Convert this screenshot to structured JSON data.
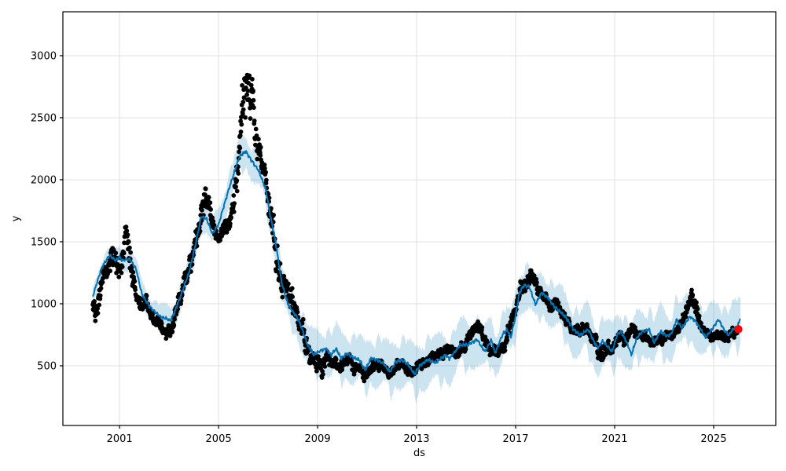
{
  "chart_data": {
    "type": "scatter+line+band",
    "title": "",
    "xlabel": "ds",
    "ylabel": "y",
    "x_ticks": [
      2001,
      2005,
      2009,
      2013,
      2017,
      2021,
      2025
    ],
    "y_ticks": [
      500,
      1000,
      1500,
      2000,
      2500,
      3000
    ],
    "x_range": [
      1998.71,
      2027.51
    ],
    "y_range": [
      19,
      3354
    ],
    "grid": true,
    "grid_color": "#e0e0e0",
    "spine_color": "#000000",
    "legend": "none",
    "series": [
      {
        "name": "uncertainty-band",
        "style": "band",
        "color": "#0072B2",
        "alpha": 0.2,
        "x_start": 1999.92,
        "x_end": 2026.08,
        "half_width_keypoints": [
          [
            1999.92,
            75
          ],
          [
            2001.0,
            95
          ],
          [
            2003.0,
            125
          ],
          [
            2005.0,
            145
          ],
          [
            2006.0,
            160
          ],
          [
            2007.0,
            170
          ],
          [
            2008.0,
            185
          ],
          [
            2009.0,
            215
          ],
          [
            2011.0,
            235
          ],
          [
            2013.0,
            235
          ],
          [
            2015.0,
            225
          ],
          [
            2017.0,
            215
          ],
          [
            2018.0,
            210
          ],
          [
            2020.0,
            235
          ],
          [
            2022.0,
            235
          ],
          [
            2024.0,
            225
          ],
          [
            2026.08,
            235
          ]
        ]
      },
      {
        "name": "actual-observations",
        "style": "scatter",
        "color": "#000000",
        "marker_radius": 2.9,
        "x_start": 1999.92,
        "x_end": 2025.96,
        "center_keypoints": [
          [
            1999.92,
            960
          ],
          [
            2000.12,
            1020
          ],
          [
            2000.3,
            1200
          ],
          [
            2000.5,
            1340
          ],
          [
            2000.65,
            1430
          ],
          [
            2000.85,
            1280
          ],
          [
            2001.05,
            1340
          ],
          [
            2001.25,
            1530
          ],
          [
            2001.45,
            1300
          ],
          [
            2001.7,
            1080
          ],
          [
            2002.0,
            980
          ],
          [
            2002.3,
            900
          ],
          [
            2002.6,
            830
          ],
          [
            2002.9,
            762
          ],
          [
            2003.1,
            800
          ],
          [
            2003.4,
            1020
          ],
          [
            2003.7,
            1200
          ],
          [
            2004.0,
            1430
          ],
          [
            2004.3,
            1780
          ],
          [
            2004.5,
            1840
          ],
          [
            2004.75,
            1650
          ],
          [
            2004.95,
            1552
          ],
          [
            2005.2,
            1600
          ],
          [
            2005.5,
            1700
          ],
          [
            2005.75,
            1950
          ],
          [
            2005.95,
            2500
          ],
          [
            2006.1,
            2840
          ],
          [
            2006.25,
            2790
          ],
          [
            2006.45,
            2400
          ],
          [
            2006.65,
            2200
          ],
          [
            2006.85,
            2100
          ],
          [
            2007.05,
            1700
          ],
          [
            2007.3,
            1350
          ],
          [
            2007.6,
            1200
          ],
          [
            2007.9,
            1060
          ],
          [
            2008.1,
            960
          ],
          [
            2008.4,
            830
          ],
          [
            2008.7,
            650
          ],
          [
            2008.95,
            470
          ],
          [
            2009.2,
            520
          ],
          [
            2009.5,
            545
          ],
          [
            2009.8,
            505
          ],
          [
            2010.1,
            560
          ],
          [
            2010.4,
            540
          ],
          [
            2010.75,
            470
          ],
          [
            2011.0,
            430
          ],
          [
            2011.3,
            520
          ],
          [
            2011.6,
            500
          ],
          [
            2011.9,
            440
          ],
          [
            2012.2,
            500
          ],
          [
            2012.5,
            520
          ],
          [
            2012.85,
            430
          ],
          [
            2013.1,
            480
          ],
          [
            2013.4,
            520
          ],
          [
            2013.7,
            550
          ],
          [
            2014.0,
            610
          ],
          [
            2014.3,
            640
          ],
          [
            2014.6,
            620
          ],
          [
            2014.9,
            640
          ],
          [
            2015.1,
            700
          ],
          [
            2015.35,
            840
          ],
          [
            2015.65,
            760
          ],
          [
            2015.95,
            630
          ],
          [
            2016.3,
            630
          ],
          [
            2016.6,
            720
          ],
          [
            2016.9,
            900
          ],
          [
            2017.1,
            1040
          ],
          [
            2017.4,
            1160
          ],
          [
            2017.62,
            1230
          ],
          [
            2017.9,
            1100
          ],
          [
            2018.15,
            1080
          ],
          [
            2018.45,
            990
          ],
          [
            2018.75,
            930
          ],
          [
            2019.05,
            880
          ],
          [
            2019.35,
            800
          ],
          [
            2019.6,
            780
          ],
          [
            2019.9,
            810
          ],
          [
            2020.15,
            700
          ],
          [
            2020.35,
            570
          ],
          [
            2020.6,
            660
          ],
          [
            2020.9,
            640
          ],
          [
            2021.15,
            760
          ],
          [
            2021.45,
            700
          ],
          [
            2021.7,
            810
          ],
          [
            2021.95,
            750
          ],
          [
            2022.2,
            730
          ],
          [
            2022.5,
            700
          ],
          [
            2022.8,
            680
          ],
          [
            2023.1,
            700
          ],
          [
            2023.4,
            760
          ],
          [
            2023.7,
            820
          ],
          [
            2023.95,
            950
          ],
          [
            2024.15,
            1040
          ],
          [
            2024.4,
            880
          ],
          [
            2024.7,
            760
          ],
          [
            2024.95,
            730
          ],
          [
            2025.2,
            745
          ],
          [
            2025.5,
            728
          ],
          [
            2025.75,
            755
          ],
          [
            2025.95,
            790
          ]
        ],
        "spread_keypoints": [
          [
            1999.92,
            120
          ],
          [
            2000.5,
            130
          ],
          [
            2000.9,
            110
          ],
          [
            2001.25,
            155
          ],
          [
            2001.6,
            95
          ],
          [
            2002.2,
            70
          ],
          [
            2003.0,
            65
          ],
          [
            2003.6,
            90
          ],
          [
            2004.3,
            140
          ],
          [
            2004.9,
            70
          ],
          [
            2005.5,
            90
          ],
          [
            2005.95,
            290
          ],
          [
            2006.25,
            270
          ],
          [
            2006.6,
            160
          ],
          [
            2006.9,
            120
          ],
          [
            2007.1,
            240
          ],
          [
            2007.5,
            130
          ],
          [
            2008.0,
            110
          ],
          [
            2008.6,
            110
          ],
          [
            2009.05,
            110
          ],
          [
            2009.5,
            60
          ],
          [
            2011.0,
            60
          ],
          [
            2013.0,
            55
          ],
          [
            2014.5,
            50
          ],
          [
            2015.35,
            75
          ],
          [
            2016.0,
            55
          ],
          [
            2017.0,
            70
          ],
          [
            2017.6,
            70
          ],
          [
            2018.5,
            55
          ],
          [
            2019.5,
            50
          ],
          [
            2020.35,
            85
          ],
          [
            2021.2,
            60
          ],
          [
            2022.5,
            50
          ],
          [
            2023.5,
            55
          ],
          [
            2024.1,
            80
          ],
          [
            2024.8,
            50
          ],
          [
            2025.5,
            45
          ],
          [
            2025.95,
            40
          ]
        ]
      },
      {
        "name": "forecast-line",
        "style": "line",
        "color": "#0072B2",
        "line_width": 2,
        "x_start": 1999.92,
        "x_end": 2026.08,
        "keypoints": [
          [
            1999.92,
            1060
          ],
          [
            2000.1,
            1180
          ],
          [
            2000.3,
            1300
          ],
          [
            2000.6,
            1392
          ],
          [
            2000.85,
            1348
          ],
          [
            2001.0,
            1380
          ],
          [
            2001.1,
            1348
          ],
          [
            2001.42,
            1361
          ],
          [
            2001.67,
            1278
          ],
          [
            2001.9,
            1080
          ],
          [
            2002.2,
            981
          ],
          [
            2002.45,
            930
          ],
          [
            2002.65,
            898
          ],
          [
            2002.9,
            880
          ],
          [
            2003.05,
            866
          ],
          [
            2003.2,
            920
          ],
          [
            2003.5,
            1080
          ],
          [
            2003.8,
            1250
          ],
          [
            2004.05,
            1460
          ],
          [
            2004.3,
            1705
          ],
          [
            2004.5,
            1690
          ],
          [
            2004.75,
            1565
          ],
          [
            2005.0,
            1640
          ],
          [
            2005.3,
            1850
          ],
          [
            2005.6,
            2040
          ],
          [
            2005.85,
            2190
          ],
          [
            2006.1,
            2230
          ],
          [
            2006.35,
            2150
          ],
          [
            2006.6,
            2080
          ],
          [
            2006.9,
            1930
          ],
          [
            2007.1,
            1700
          ],
          [
            2007.3,
            1500
          ],
          [
            2007.55,
            1170
          ],
          [
            2007.8,
            1000
          ],
          [
            2008.0,
            935
          ],
          [
            2008.15,
            900
          ],
          [
            2008.35,
            810
          ],
          [
            2008.6,
            665
          ],
          [
            2008.85,
            590
          ],
          [
            2009.1,
            620
          ],
          [
            2009.35,
            640
          ],
          [
            2009.55,
            585
          ],
          [
            2009.75,
            640
          ],
          [
            2009.95,
            560
          ],
          [
            2010.2,
            600
          ],
          [
            2010.45,
            565
          ],
          [
            2010.7,
            545
          ],
          [
            2010.92,
            462
          ],
          [
            2011.15,
            560
          ],
          [
            2011.4,
            548
          ],
          [
            2011.65,
            520
          ],
          [
            2011.92,
            452
          ],
          [
            2012.15,
            530
          ],
          [
            2012.4,
            548
          ],
          [
            2012.65,
            512
          ],
          [
            2012.92,
            434
          ],
          [
            2013.15,
            505
          ],
          [
            2013.45,
            548
          ],
          [
            2013.79,
            525
          ],
          [
            2014.17,
            589
          ],
          [
            2014.33,
            557
          ],
          [
            2014.75,
            665
          ],
          [
            2015.1,
            672
          ],
          [
            2015.44,
            712
          ],
          [
            2015.76,
            614
          ],
          [
            2016.02,
            709
          ],
          [
            2016.17,
            601
          ],
          [
            2016.49,
            759
          ],
          [
            2016.65,
            791
          ],
          [
            2016.81,
            730
          ],
          [
            2017.0,
            900
          ],
          [
            2017.15,
            1090
          ],
          [
            2017.35,
            1150
          ],
          [
            2017.55,
            1138
          ],
          [
            2017.8,
            995
          ],
          [
            2018.05,
            1088
          ],
          [
            2018.3,
            1050
          ],
          [
            2018.55,
            980
          ],
          [
            2018.8,
            938
          ],
          [
            2019.05,
            886
          ],
          [
            2019.35,
            790
          ],
          [
            2019.6,
            747
          ],
          [
            2019.82,
            779
          ],
          [
            2019.95,
            790
          ],
          [
            2020.2,
            680
          ],
          [
            2020.35,
            646
          ],
          [
            2020.5,
            700
          ],
          [
            2020.68,
            665
          ],
          [
            2020.9,
            614
          ],
          [
            2021.1,
            750
          ],
          [
            2021.25,
            779
          ],
          [
            2021.5,
            684
          ],
          [
            2021.68,
            589
          ],
          [
            2021.9,
            728
          ],
          [
            2022.15,
            779
          ],
          [
            2022.4,
            791
          ],
          [
            2022.6,
            684
          ],
          [
            2022.85,
            779
          ],
          [
            2023.1,
            740
          ],
          [
            2023.3,
            760
          ],
          [
            2023.5,
            873
          ],
          [
            2023.72,
            804
          ],
          [
            2024.05,
            898
          ],
          [
            2024.3,
            850
          ],
          [
            2024.68,
            728
          ],
          [
            2024.95,
            800
          ],
          [
            2025.2,
            873
          ],
          [
            2025.42,
            791
          ],
          [
            2025.6,
            747
          ],
          [
            2025.8,
            800
          ],
          [
            2025.95,
            805
          ],
          [
            2026.08,
            886
          ]
        ]
      },
      {
        "name": "last-observation",
        "style": "point",
        "color": "#ff0000",
        "marker_radius": 5.2,
        "x": 2026.0,
        "y": 795
      }
    ]
  }
}
